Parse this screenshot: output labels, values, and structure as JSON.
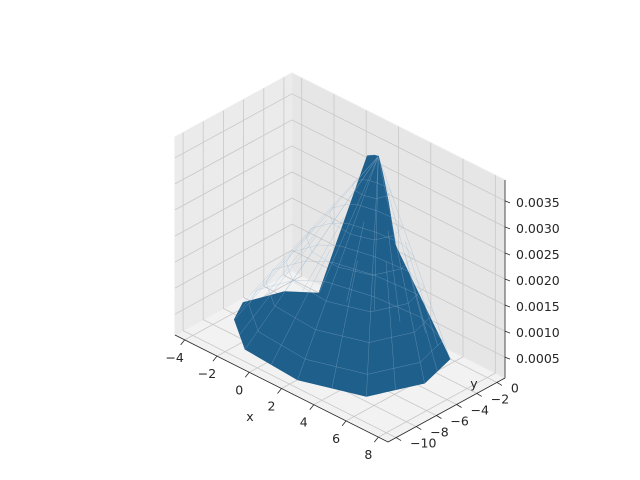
{
  "chart_data": {
    "type": "surface3d",
    "title": "",
    "xlabel": "x",
    "ylabel": "y",
    "zlabel": "",
    "surface_color": "#1f5f8b",
    "pane_colors": [
      "#f2f2f2",
      "#ebebeb",
      "#e6e6e6"
    ],
    "grid": true,
    "xlim": [
      -4.6,
      8.6
    ],
    "ylim": [
      -10.8,
      0.8
    ],
    "zlim": [
      0.0001,
      0.0039
    ],
    "x_ticks": [
      {
        "value": -4,
        "label": "−4"
      },
      {
        "value": -2,
        "label": "−2"
      },
      {
        "value": 0,
        "label": "0"
      },
      {
        "value": 2,
        "label": "2"
      },
      {
        "value": 4,
        "label": "4"
      },
      {
        "value": 6,
        "label": "6"
      },
      {
        "value": 8,
        "label": "8"
      }
    ],
    "y_ticks": [
      {
        "value": 0,
        "label": "0"
      },
      {
        "value": -2,
        "label": "−2"
      },
      {
        "value": -4,
        "label": "−4"
      },
      {
        "value": -6,
        "label": "−6"
      },
      {
        "value": -8,
        "label": "−8"
      },
      {
        "value": -10,
        "label": "−10"
      }
    ],
    "z_ticks": [
      {
        "value": 0.0005,
        "label": "0.0005"
      },
      {
        "value": 0.001,
        "label": "0.0010"
      },
      {
        "value": 0.0015,
        "label": "0.0015"
      },
      {
        "value": 0.002,
        "label": "0.0020"
      },
      {
        "value": 0.0025,
        "label": "0.0025"
      },
      {
        "value": 0.003,
        "label": "0.0030"
      },
      {
        "value": 0.0035,
        "label": "0.0035"
      }
    ],
    "surface": {
      "peak": {
        "x": 2.5,
        "y": -2.0,
        "z": 0.0037
      },
      "boundary": [
        {
          "x": -3.6,
          "y": -6.5,
          "z": 0.0001
        },
        {
          "x": -4.0,
          "y": -5.0,
          "z": 0.0002
        },
        {
          "x": -3.0,
          "y": -2.5,
          "z": 0.0003
        },
        {
          "x": -1.8,
          "y": -1.0,
          "z": 0.0003
        },
        {
          "x": 1.0,
          "y": 0.0,
          "z": 0.0003
        },
        {
          "x": 4.0,
          "y": 0.3,
          "z": 0.0003
        },
        {
          "x": 6.0,
          "y": -0.5,
          "z": 0.0002
        },
        {
          "x": 6.3,
          "y": -3.5,
          "z": 0.0001
        },
        {
          "x": 5.2,
          "y": -7.5,
          "z": 0.0001
        },
        {
          "x": 2.0,
          "y": -9.2,
          "z": 0.0001
        },
        {
          "x": -1.5,
          "y": -8.8,
          "z": 0.0001
        }
      ],
      "ridge": [
        {
          "x": 1.2,
          "y": -1.0,
          "z": 0.0034
        },
        {
          "x": 2.0,
          "y": -1.6,
          "z": 0.0036
        },
        {
          "x": 2.5,
          "y": -2.0,
          "z": 0.0037
        },
        {
          "x": 3.0,
          "y": -2.4,
          "z": 0.0035
        },
        {
          "x": 3.6,
          "y": -2.8,
          "z": 0.0031
        },
        {
          "x": 4.3,
          "y": -3.2,
          "z": 0.0024
        }
      ]
    }
  }
}
